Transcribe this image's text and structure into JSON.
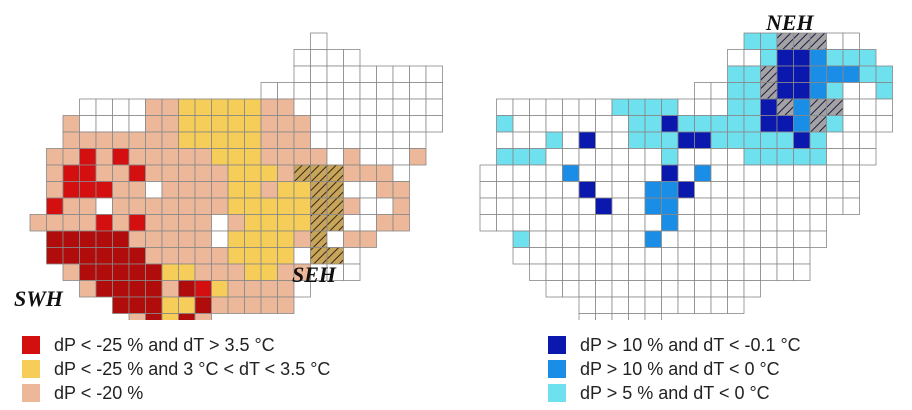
{
  "regions": {
    "swh": "SWH",
    "seh": "SEH",
    "neh": "NEH"
  },
  "colors": {
    "grid_line": "#888888",
    "empty": "#ffffff",
    "left": {
      "strong": "#d40f0f",
      "dark": "#b10c0c",
      "mid": "#f6cd58",
      "weak": "#edb89a",
      "hatch": "#c9a55b"
    },
    "right": {
      "strong": "#0b18ad",
      "mid": "#1a8ee6",
      "weak": "#6ee0ee",
      "hatch": "#a3a3a3"
    }
  },
  "legend_left": [
    {
      "label": "dP < -25 % and dT > 3.5 °C",
      "color": "#d40f0f"
    },
    {
      "label": "dP < -25 % and 3 °C < dT < 3.5 °C",
      "color": "#f6cd58"
    },
    {
      "label": "dP < -20 %",
      "color": "#edb89a"
    }
  ],
  "legend_right": [
    {
      "label": "dP > 10 % and dT < -0.1 °C",
      "color": "#0b18ad"
    },
    {
      "label": "dP > 10 % and dT < 0 °C",
      "color": "#1a8ee6"
    },
    {
      "label": "dP > 5 % and dT < 0 °C",
      "color": "#6ee0ee"
    }
  ]
}
